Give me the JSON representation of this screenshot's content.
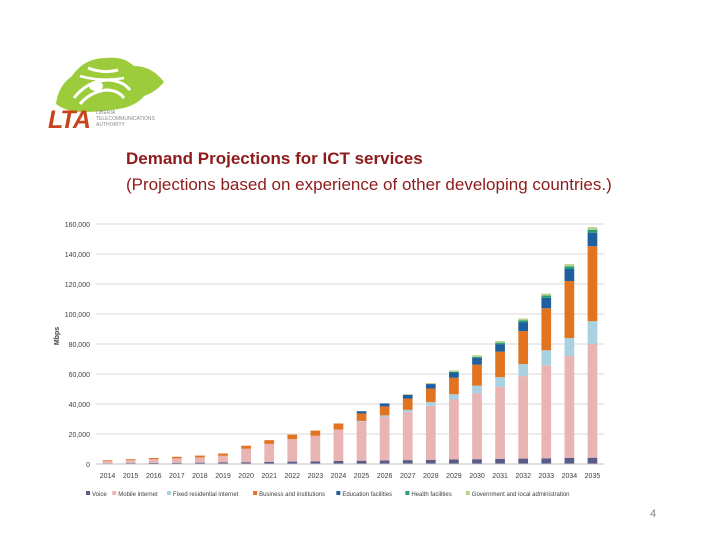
{
  "logo": {
    "name": "LTA",
    "tagline_lines": [
      "LIBERIA",
      "TELECOMMUNICATIONS",
      "AUTHORITY"
    ]
  },
  "slide": {
    "title": "Demand Projections for ICT services",
    "subtitle": "(Projections based on experience of other developing countries.)",
    "page_number": "4"
  },
  "chart_data": {
    "type": "bar",
    "stacked": true,
    "title": "",
    "xlabel": "",
    "ylabel": "Mbps",
    "ylim": [
      0,
      160000
    ],
    "yticks": [
      "0",
      "20,000",
      "40,000",
      "60,000",
      "80,000",
      "100,000",
      "120,000",
      "140,000",
      "160,000"
    ],
    "grid": true,
    "legend_position": "bottom",
    "categories": [
      "2014",
      "2015",
      "2016",
      "2017",
      "2018",
      "2019",
      "2020",
      "2021",
      "2022",
      "2023",
      "2024",
      "2025",
      "2026",
      "2027",
      "2028",
      "2029",
      "2030",
      "2031",
      "2032",
      "2033",
      "2034",
      "2035"
    ],
    "series": [
      {
        "name": "Voice",
        "color": "#5b5b8a",
        "values": [
          500,
          600,
          700,
          800,
          900,
          1000,
          1200,
          1400,
          1600,
          1800,
          2000,
          2200,
          2400,
          2600,
          2800,
          3000,
          3200,
          3400,
          3600,
          3800,
          4000,
          4200
        ]
      },
      {
        "name": "Mobile internet",
        "color": "#e8b4b4",
        "values": [
          1500,
          2000,
          2500,
          3000,
          3500,
          4500,
          9000,
          12000,
          15000,
          17000,
          21000,
          26000,
          29000,
          32000,
          36000,
          40000,
          44000,
          48000,
          55000,
          62000,
          68000,
          76000
        ]
      },
      {
        "name": "Fixed residential internet",
        "color": "#a9d2e0",
        "values": [
          0,
          0,
          0,
          0,
          0,
          0,
          0,
          0,
          0,
          0,
          0,
          500,
          1000,
          1500,
          2500,
          3500,
          5000,
          6500,
          8000,
          10000,
          12000,
          15000
        ]
      },
      {
        "name": "Business and institutions",
        "color": "#e27321",
        "values": [
          500,
          600,
          800,
          1000,
          1200,
          1500,
          2000,
          2500,
          3000,
          3500,
          4000,
          5000,
          6000,
          7500,
          9000,
          11000,
          14000,
          17000,
          22000,
          28000,
          38000,
          50000
        ]
      },
      {
        "name": "Education facilities",
        "color": "#1f5f9e",
        "values": [
          0,
          0,
          0,
          0,
          0,
          0,
          0,
          0,
          0,
          0,
          0,
          1500,
          2000,
          2500,
          3000,
          3500,
          4500,
          5000,
          6000,
          7000,
          8000,
          9000
        ]
      },
      {
        "name": "Health facilities",
        "color": "#2a9e72",
        "values": [
          0,
          0,
          0,
          0,
          0,
          0,
          0,
          0,
          0,
          0,
          0,
          0,
          0,
          0,
          0,
          500,
          800,
          1000,
          1200,
          1500,
          1800,
          2000
        ]
      },
      {
        "name": "Government and local administration",
        "color": "#b7d38c",
        "values": [
          0,
          0,
          0,
          0,
          0,
          0,
          0,
          0,
          0,
          0,
          0,
          0,
          0,
          500,
          700,
          900,
          1000,
          1100,
          1200,
          1300,
          1500,
          1700
        ]
      }
    ]
  }
}
